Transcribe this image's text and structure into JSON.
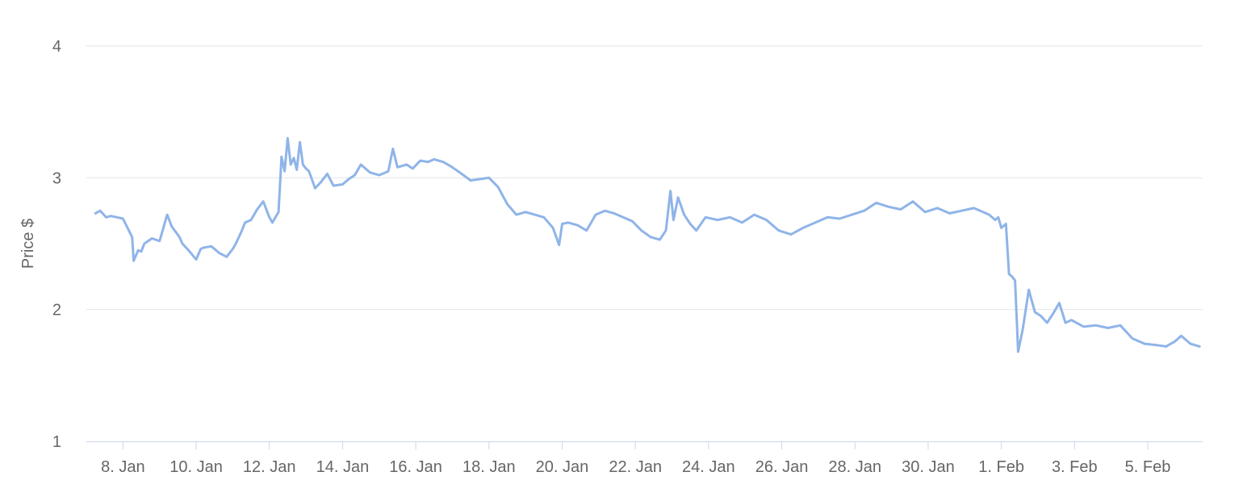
{
  "chart_data": {
    "type": "line",
    "title": "",
    "xlabel": "",
    "ylabel": "Price $",
    "ylim": [
      1,
      4
    ],
    "xlim": [
      "2018-01-07T00:00",
      "2018-02-06T12:00"
    ],
    "y_ticks": [
      1,
      2,
      3,
      4
    ],
    "x_ticks": [
      {
        "value": "2018-01-08",
        "label": "8. Jan"
      },
      {
        "value": "2018-01-10",
        "label": "10. Jan"
      },
      {
        "value": "2018-01-12",
        "label": "12. Jan"
      },
      {
        "value": "2018-01-14",
        "label": "14. Jan"
      },
      {
        "value": "2018-01-16",
        "label": "16. Jan"
      },
      {
        "value": "2018-01-18",
        "label": "18. Jan"
      },
      {
        "value": "2018-01-20",
        "label": "20. Jan"
      },
      {
        "value": "2018-01-22",
        "label": "22. Jan"
      },
      {
        "value": "2018-01-24",
        "label": "24. Jan"
      },
      {
        "value": "2018-01-26",
        "label": "26. Jan"
      },
      {
        "value": "2018-01-28",
        "label": "28. Jan"
      },
      {
        "value": "2018-01-30",
        "label": "30. Jan"
      },
      {
        "value": "2018-02-01",
        "label": "1. Feb"
      },
      {
        "value": "2018-02-03",
        "label": "3. Feb"
      },
      {
        "value": "2018-02-05",
        "label": "5. Feb"
      }
    ],
    "grid": true,
    "legend": "none",
    "colors": {
      "series": "#8fb4e8",
      "grid": "#e6e6e6",
      "axis": "#ccd6eb",
      "text": "#666666"
    },
    "series": [
      {
        "x": [
          "2018-01-07T06:00",
          "2018-01-07T09:00",
          "2018-01-07T13:00",
          "2018-01-07T16:00",
          "2018-01-07T20:00",
          "2018-01-08T00:00",
          "2018-01-08T06:00",
          "2018-01-08T07:00",
          "2018-01-08T10:00",
          "2018-01-08T12:00",
          "2018-01-08T14:00",
          "2018-01-08T19:00",
          "2018-01-09T00:00",
          "2018-01-09T02:00",
          "2018-01-09T05:00",
          "2018-01-09T08:00",
          "2018-01-09T13:00",
          "2018-01-09T15:00",
          "2018-01-09T19:00",
          "2018-01-10T00:00",
          "2018-01-10T03:00",
          "2018-01-10T05:00",
          "2018-01-10T10:00",
          "2018-01-10T15:00",
          "2018-01-10T20:00",
          "2018-01-11T00:00",
          "2018-01-11T02:00",
          "2018-01-11T06:00",
          "2018-01-11T08:00",
          "2018-01-11T12:00",
          "2018-01-11T16:00",
          "2018-01-11T20:00",
          "2018-01-12T00:00",
          "2018-01-12T02:00",
          "2018-01-12T04:00",
          "2018-01-12T06:00",
          "2018-01-12T08:00",
          "2018-01-12T10:00",
          "2018-01-12T12:00",
          "2018-01-12T14:00",
          "2018-01-12T16:00",
          "2018-01-12T18:00",
          "2018-01-12T20:00",
          "2018-01-12T22:00",
          "2018-01-13T00:00",
          "2018-01-13T02:00",
          "2018-01-13T06:00",
          "2018-01-13T10:00",
          "2018-01-13T14:00",
          "2018-01-13T18:00",
          "2018-01-14T00:00",
          "2018-01-14T04:00",
          "2018-01-14T08:00",
          "2018-01-14T12:00",
          "2018-01-14T18:00",
          "2018-01-15T00:00",
          "2018-01-15T06:00",
          "2018-01-15T09:00",
          "2018-01-15T12:00",
          "2018-01-15T18:00",
          "2018-01-15T22:00",
          "2018-01-16T03:00",
          "2018-01-16T08:00",
          "2018-01-16T12:00",
          "2018-01-16T18:00",
          "2018-01-17T00:00",
          "2018-01-17T06:00",
          "2018-01-17T12:00",
          "2018-01-17T18:00",
          "2018-01-18T00:00",
          "2018-01-18T06:00",
          "2018-01-18T12:00",
          "2018-01-18T18:00",
          "2018-01-19T00:00",
          "2018-01-19T06:00",
          "2018-01-19T12:00",
          "2018-01-19T18:00",
          "2018-01-19T22:00",
          "2018-01-20T00:00",
          "2018-01-20T04:00",
          "2018-01-20T10:00",
          "2018-01-20T16:00",
          "2018-01-20T22:00",
          "2018-01-21T04:00",
          "2018-01-21T10:00",
          "2018-01-21T16:00",
          "2018-01-21T22:00",
          "2018-01-22T04:00",
          "2018-01-22T10:00",
          "2018-01-22T16:00",
          "2018-01-22T20:00",
          "2018-01-22T23:00",
          "2018-01-23T01:00",
          "2018-01-23T04:00",
          "2018-01-23T08:00",
          "2018-01-23T12:00",
          "2018-01-23T16:00",
          "2018-01-23T22:00",
          "2018-01-24T06:00",
          "2018-01-24T14:00",
          "2018-01-24T22:00",
          "2018-01-25T06:00",
          "2018-01-25T14:00",
          "2018-01-25T22:00",
          "2018-01-26T06:00",
          "2018-01-26T14:00",
          "2018-01-26T22:00",
          "2018-01-27T06:00",
          "2018-01-27T14:00",
          "2018-01-27T22:00",
          "2018-01-28T06:00",
          "2018-01-28T14:00",
          "2018-01-28T22:00",
          "2018-01-29T06:00",
          "2018-01-29T14:00",
          "2018-01-29T22:00",
          "2018-01-30T06:00",
          "2018-01-30T14:00",
          "2018-01-30T22:00",
          "2018-01-31T06:00",
          "2018-01-31T12:00",
          "2018-01-31T16:00",
          "2018-01-31T20:00",
          "2018-01-31T22:00",
          "2018-02-01T00:00",
          "2018-02-01T03:00",
          "2018-02-01T05:00",
          "2018-02-01T07:00",
          "2018-02-01T09:00",
          "2018-02-01T11:00",
          "2018-02-01T14:00",
          "2018-02-01T18:00",
          "2018-02-01T22:00",
          "2018-02-02T02:00",
          "2018-02-02T06:00",
          "2018-02-02T10:00",
          "2018-02-02T14:00",
          "2018-02-02T18:00",
          "2018-02-02T22:00",
          "2018-02-03T06:00",
          "2018-02-03T14:00",
          "2018-02-03T22:00",
          "2018-02-04T06:00",
          "2018-02-04T14:00",
          "2018-02-04T22:00",
          "2018-02-05T06:00",
          "2018-02-05T12:00",
          "2018-02-05T18:00",
          "2018-02-05T22:00",
          "2018-02-06T04:00",
          "2018-02-06T10:00"
        ],
        "y": [
          2.73,
          2.75,
          2.7,
          2.71,
          2.7,
          2.69,
          2.55,
          2.37,
          2.45,
          2.44,
          2.5,
          2.54,
          2.52,
          2.6,
          2.72,
          2.63,
          2.55,
          2.5,
          2.45,
          2.38,
          2.46,
          2.47,
          2.48,
          2.43,
          2.4,
          2.46,
          2.5,
          2.6,
          2.66,
          2.68,
          2.76,
          2.82,
          2.7,
          2.66,
          2.7,
          2.74,
          3.16,
          3.05,
          3.3,
          3.1,
          3.15,
          3.06,
          3.27,
          3.1,
          3.07,
          3.05,
          2.92,
          2.97,
          3.03,
          2.94,
          2.95,
          2.99,
          3.02,
          3.1,
          3.04,
          3.02,
          3.05,
          3.22,
          3.08,
          3.1,
          3.07,
          3.13,
          3.12,
          3.14,
          3.12,
          3.08,
          3.03,
          2.98,
          2.99,
          3.0,
          2.93,
          2.8,
          2.72,
          2.74,
          2.72,
          2.7,
          2.62,
          2.49,
          2.65,
          2.66,
          2.64,
          2.6,
          2.72,
          2.75,
          2.73,
          2.7,
          2.67,
          2.6,
          2.55,
          2.53,
          2.6,
          2.9,
          2.68,
          2.85,
          2.72,
          2.65,
          2.6,
          2.7,
          2.68,
          2.7,
          2.66,
          2.72,
          2.68,
          2.6,
          2.57,
          2.62,
          2.66,
          2.7,
          2.69,
          2.72,
          2.75,
          2.81,
          2.78,
          2.76,
          2.82,
          2.74,
          2.77,
          2.73,
          2.75,
          2.77,
          2.74,
          2.72,
          2.68,
          2.7,
          2.62,
          2.65,
          2.27,
          2.25,
          2.22,
          1.68,
          1.85,
          2.15,
          1.98,
          1.95,
          1.9,
          1.97,
          2.05,
          1.9,
          1.92,
          1.87,
          1.88,
          1.86,
          1.88,
          1.78,
          1.74,
          1.73,
          1.72,
          1.76,
          1.8,
          1.74,
          1.72
        ]
      }
    ]
  }
}
